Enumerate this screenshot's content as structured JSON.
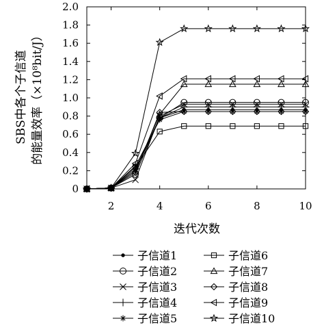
{
  "chart_data": {
    "type": "line",
    "xlabel": "迭代次数",
    "ylabel_line1": "SBS中各个子信道",
    "ylabel_line2": "的能量效率（×10⁸bit/J）",
    "xlim": [
      1,
      10
    ],
    "ylim": [
      0,
      2.0
    ],
    "x_ticks": [
      2,
      4,
      6,
      8,
      10
    ],
    "y_ticks": [
      0,
      0.2,
      0.4,
      0.6,
      0.8,
      1.0,
      1.2,
      1.4,
      1.6,
      1.8,
      2.0
    ],
    "x_tick_labels": [
      "2",
      "4",
      "6",
      "8",
      "10"
    ],
    "y_tick_labels": [
      "0",
      "0.2",
      "0.4",
      "0.6",
      "0.8",
      "1.0",
      "1.2",
      "1.4",
      "1.6",
      "1.8",
      "2.0"
    ],
    "grid": false,
    "legend_position": "bottom",
    "x": [
      1,
      2,
      3,
      4,
      5,
      6,
      7,
      8,
      9,
      10
    ],
    "series": [
      {
        "name": "子信道1",
        "marker": "dot",
        "values": [
          0,
          0.01,
          0.2,
          0.78,
          0.87,
          0.87,
          0.87,
          0.87,
          0.87,
          0.87
        ]
      },
      {
        "name": "子信道2",
        "marker": "circle",
        "values": [
          0,
          0.01,
          0.16,
          0.78,
          0.95,
          0.95,
          0.95,
          0.95,
          0.95,
          0.95
        ]
      },
      {
        "name": "子信道3",
        "marker": "x",
        "values": [
          0,
          0.01,
          0.1,
          0.8,
          0.93,
          0.93,
          0.93,
          0.93,
          0.93,
          0.93
        ]
      },
      {
        "name": "子信道4",
        "marker": "plus",
        "values": [
          0,
          0.01,
          0.22,
          0.78,
          0.9,
          0.9,
          0.9,
          0.9,
          0.9,
          0.9
        ]
      },
      {
        "name": "子信道5",
        "marker": "asterisk",
        "values": [
          0,
          0.01,
          0.25,
          0.76,
          0.85,
          0.85,
          0.85,
          0.85,
          0.85,
          0.85
        ]
      },
      {
        "name": "子信道6",
        "marker": "square",
        "values": [
          0,
          0.01,
          0.24,
          0.63,
          0.69,
          0.69,
          0.69,
          0.69,
          0.69,
          0.69
        ]
      },
      {
        "name": "子信道7",
        "marker": "triangle-up",
        "values": [
          0,
          0.01,
          0.2,
          0.82,
          1.15,
          1.15,
          1.15,
          1.15,
          1.15,
          1.15
        ]
      },
      {
        "name": "子信道8",
        "marker": "diamond",
        "values": [
          0,
          0.01,
          0.18,
          0.84,
          0.85,
          0.85,
          0.85,
          0.85,
          0.85,
          0.85
        ]
      },
      {
        "name": "子信道9",
        "marker": "triangle-left",
        "values": [
          0,
          0.01,
          0.28,
          1.02,
          1.21,
          1.21,
          1.21,
          1.21,
          1.21,
          1.21
        ]
      },
      {
        "name": "子信道10",
        "marker": "star",
        "values": [
          0,
          0.01,
          0.39,
          1.61,
          1.76,
          1.76,
          1.76,
          1.76,
          1.76,
          1.76
        ]
      }
    ]
  }
}
